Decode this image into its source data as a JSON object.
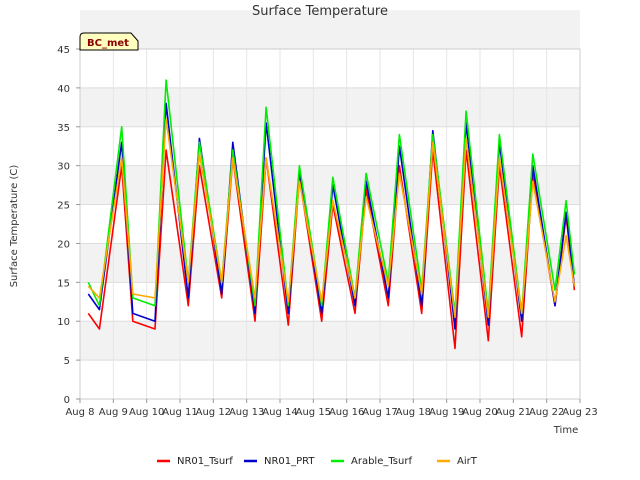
{
  "chart_data": {
    "type": "line",
    "title": "Surface Temperature",
    "xlabel": "Time",
    "ylabel": "Surface Temperature (C)",
    "badge": "BC_met",
    "ylim": [
      0,
      45
    ],
    "yticks": [
      0,
      5,
      10,
      15,
      20,
      25,
      30,
      35,
      40,
      45
    ],
    "xlim": [
      "Aug 8",
      "Aug 23"
    ],
    "xtick_labels": [
      "Aug 8",
      "Aug 9",
      "Aug 10",
      "Aug 11",
      "Aug 12",
      "Aug 13",
      "Aug 14",
      "Aug 15",
      "Aug 16",
      "Aug 17",
      "Aug 18",
      "Aug 19",
      "Aug 20",
      "Aug 21",
      "Aug 22",
      "Aug 23"
    ],
    "grid": true,
    "legend_position": "bottom",
    "colors": {
      "NR01_Tsurf": "#ff0000",
      "NR01_PRT": "#0000cc",
      "Arable_Tsurf": "#00ee00",
      "AirT": "#ffaa00",
      "band": "#f2f2f2",
      "badge_fill": "#ffffc0"
    },
    "x": [
      "Aug 8 06:00",
      "Aug 8 14:00",
      "Aug 9 06:00",
      "Aug 9 14:00",
      "Aug 10 06:00",
      "Aug 10 14:00",
      "Aug 11 06:00",
      "Aug 11 14:00",
      "Aug 12 06:00",
      "Aug 12 14:00",
      "Aug 13 06:00",
      "Aug 13 14:00",
      "Aug 14 06:00",
      "Aug 14 14:00",
      "Aug 15 06:00",
      "Aug 15 14:00",
      "Aug 16 06:00",
      "Aug 16 14:00",
      "Aug 17 06:00",
      "Aug 17 14:00",
      "Aug 18 06:00",
      "Aug 18 14:00",
      "Aug 19 06:00",
      "Aug 19 14:00",
      "Aug 20 06:00",
      "Aug 20 14:00",
      "Aug 21 06:00",
      "Aug 21 14:00",
      "Aug 22 06:00",
      "Aug 22 14:00",
      "Aug 22 20:00"
    ],
    "series": [
      {
        "name": "NR01_Tsurf",
        "values": [
          11,
          9,
          30,
          10,
          9,
          32,
          12,
          30,
          13,
          31,
          10,
          31,
          9.5,
          28.5,
          10,
          25,
          11,
          27,
          12,
          30,
          11,
          32,
          6.5,
          32,
          7.5,
          30,
          8,
          29,
          12,
          23.5,
          14
        ]
      },
      {
        "name": "NR01_PRT",
        "values": [
          13.5,
          11.5,
          33,
          11,
          10,
          38,
          13,
          33.5,
          13.5,
          33,
          11,
          35.5,
          11,
          29.5,
          11,
          27.5,
          12,
          28,
          13,
          32.5,
          12,
          34.5,
          9,
          35.5,
          9.5,
          33,
          10,
          30,
          12,
          24,
          14.5
        ]
      },
      {
        "name": "Arable_Tsurf",
        "values": [
          15,
          12,
          35,
          13,
          12,
          41,
          15,
          33,
          15,
          32,
          12,
          37.5,
          12,
          30,
          12,
          28.5,
          13,
          29,
          15,
          34,
          14,
          34,
          11,
          37,
          11,
          34,
          11,
          31.5,
          14,
          25.5,
          16
        ]
      },
      {
        "name": "AirT",
        "values": [
          14.5,
          13,
          31,
          13.5,
          13,
          36,
          15,
          31.5,
          15,
          31,
          13,
          31,
          12.5,
          28,
          12.5,
          25.5,
          13,
          26,
          14.5,
          29,
          13.5,
          33,
          10.5,
          33.5,
          10.5,
          31,
          11,
          28,
          12.5,
          21,
          14.5
        ]
      }
    ]
  }
}
